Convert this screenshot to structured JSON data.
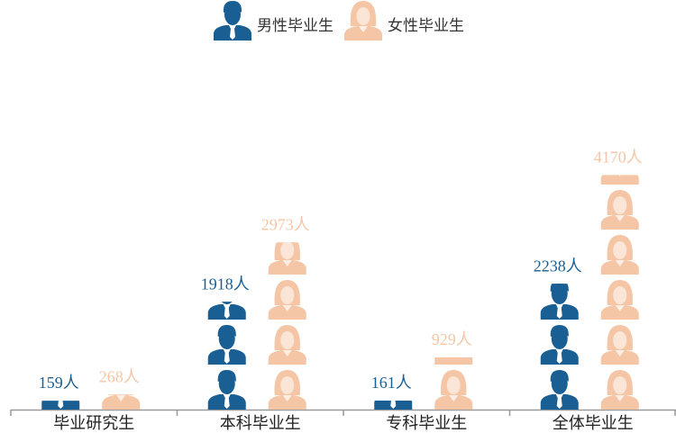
{
  "chart_data": {
    "type": "pictograph",
    "categories": [
      "毕业研究生",
      "本科毕业生",
      "专科毕业生",
      "全体毕业生"
    ],
    "series": [
      {
        "name": "男性毕业生",
        "color": "#1a5f94",
        "values": [
          159,
          1918,
          161,
          2238
        ],
        "value_labels": [
          "159人",
          "1918人",
          "161人",
          "2238人"
        ]
      },
      {
        "name": "女性毕业生",
        "color": "#f5c6a6",
        "values": [
          268,
          2973,
          929,
          4170
        ],
        "value_labels": [
          "268人",
          "2973人",
          "929人",
          "4170人"
        ]
      }
    ],
    "ylim": [
      0,
      6000
    ],
    "legend": "top"
  }
}
